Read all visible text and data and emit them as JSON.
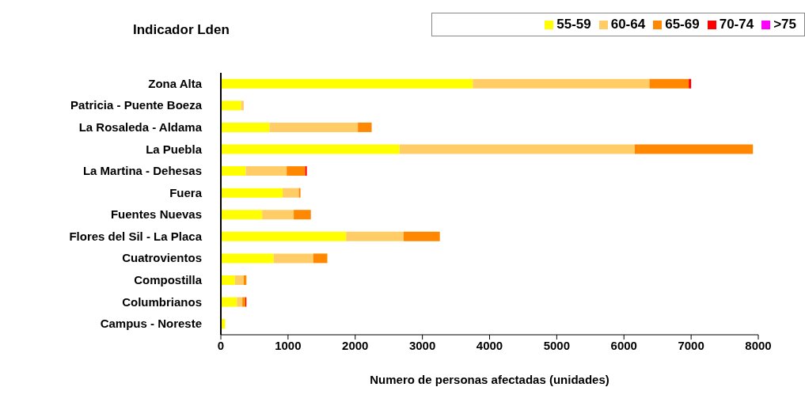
{
  "chart_data": {
    "type": "bar",
    "orientation": "horizontal",
    "stacked": true,
    "title": "Indicador  Lden",
    "xlabel": "Numero de personas afectadas (unidades)",
    "categories": [
      "Zona Alta",
      "Patricia - Puente Boeza",
      "La Rosaleda - Aldama",
      "La Puebla",
      "La Martina - Dehesas",
      "Fuera",
      "Fuentes Nuevas",
      "Flores del Sil - La Placa",
      "Cuatrovientos",
      "Compostilla",
      "Columbrianos",
      "Campus - Noreste"
    ],
    "series": [
      {
        "name": "55-59",
        "color": "#ffff00",
        "values": [
          3750,
          300,
          725,
          2660,
          370,
          920,
          615,
          1865,
          785,
          210,
          240,
          65
        ]
      },
      {
        "name": "60-64",
        "color": "#ffcc66",
        "values": [
          2630,
          40,
          1315,
          3500,
          610,
          240,
          470,
          855,
          590,
          130,
          80,
          null
        ]
      },
      {
        "name": "65-69",
        "color": "#ff8800",
        "values": [
          585,
          null,
          205,
          1760,
          275,
          25,
          255,
          540,
          210,
          40,
          45,
          null
        ]
      },
      {
        "name": "70-74",
        "color": "#ff0000",
        "values": [
          35,
          null,
          null,
          null,
          25,
          null,
          null,
          null,
          null,
          null,
          15,
          null
        ]
      },
      {
        "name": ">75",
        "color": "#ff00ff",
        "values": [
          null,
          null,
          null,
          null,
          null,
          null,
          null,
          null,
          null,
          null,
          null,
          null
        ]
      }
    ],
    "xlim": [
      0,
      8000
    ],
    "xticks": [
      0,
      1000,
      2000,
      3000,
      4000,
      5000,
      6000,
      7000,
      8000
    ],
    "grid": false,
    "legend": "top right"
  }
}
